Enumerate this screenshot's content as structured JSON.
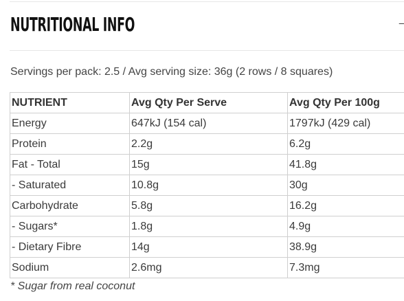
{
  "heading": "NUTRITIONAL INFO",
  "toggle_icon": "collapse-indicator-icon",
  "servings_text": "Servings per pack: 2.5 / Avg serving size: 36g (2 rows / 8 squares)",
  "table": {
    "headers": [
      "NUTRIENT",
      "Avg Qty Per Serve",
      "Avg Qty Per 100g"
    ],
    "rows": [
      [
        "Energy",
        "647kJ (154 cal)",
        "1797kJ (429 cal)"
      ],
      [
        "Protein",
        "2.2g",
        "6.2g"
      ],
      [
        "Fat - Total",
        "15g",
        "41.8g"
      ],
      [
        "- Saturated",
        "10.8g",
        "30g"
      ],
      [
        "Carbohydrate",
        "5.8g",
        "16.2g"
      ],
      [
        "- Sugars*",
        "1.8g",
        "4.9g"
      ],
      [
        "- Dietary Fibre",
        "14g",
        "38.9g"
      ],
      [
        "Sodium",
        "2.6mg",
        "7.3mg"
      ]
    ]
  },
  "footnote": "* Sugar from real coconut",
  "colors": {
    "heading": "#111111",
    "text": "#3a3a3a",
    "border": "#cfcfcf",
    "rule": "#e6e6e6"
  }
}
